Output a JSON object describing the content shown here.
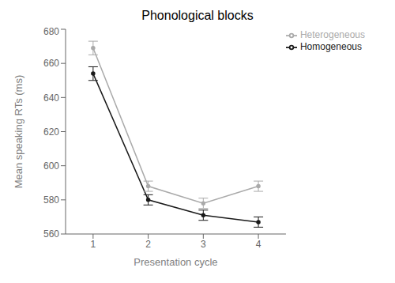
{
  "chart_data": {
    "type": "line",
    "title": "Phonological blocks",
    "xlabel": "Presentation cycle",
    "ylabel": "Mean speaking RTs (ms)",
    "x": [
      1,
      2,
      3,
      4
    ],
    "series": [
      {
        "name": "Homogeneous",
        "color": "#1a1a1a",
        "values": [
          654,
          580,
          571,
          567
        ],
        "errors": [
          4,
          3,
          3,
          3
        ]
      },
      {
        "name": "Heterogeneous",
        "color": "#aaaaaa",
        "values": [
          669,
          588,
          578,
          588
        ],
        "errors": [
          4,
          3,
          3,
          3
        ]
      }
    ],
    "xlim": [
      0.5,
      4.5
    ],
    "ylim": [
      560,
      680
    ],
    "xticks": [
      1,
      2,
      3,
      4
    ],
    "yticks": [
      560,
      580,
      600,
      620,
      640,
      660,
      680
    ],
    "grid": false,
    "legend": "upper right"
  }
}
